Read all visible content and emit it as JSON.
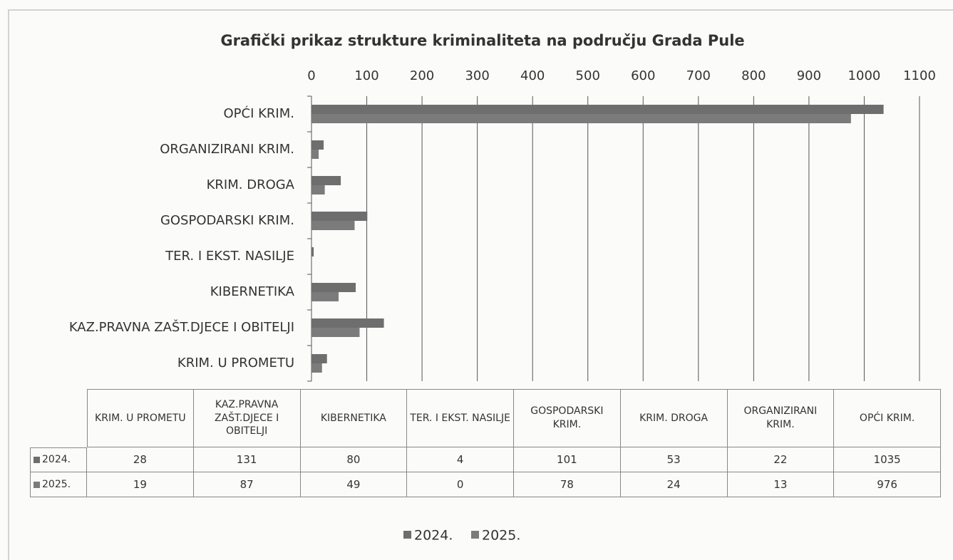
{
  "chart_data": {
    "type": "bar",
    "orientation": "horizontal",
    "title": "Grafički prikaz strukture kriminaliteta na području Grada Pule",
    "categories": [
      "KRIM. U PROMETU",
      "KAZ.PRAVNA ZAŠT.DJECE I OBITELJI",
      "KIBERNETIKA",
      "TER. I EKST. NASILJE",
      "GOSPODARSKI KRIM.",
      "KRIM. DROGA",
      "ORGANIZIRANI KRIM.",
      "OPĆI KRIM."
    ],
    "series": [
      {
        "name": "2024.",
        "color": "#6e6e6e",
        "values": [
          28,
          131,
          80,
          4,
          101,
          53,
          22,
          1035
        ]
      },
      {
        "name": "2025.",
        "color": "#7b7b7b",
        "values": [
          19,
          87,
          49,
          0,
          78,
          24,
          13,
          976
        ]
      }
    ],
    "xlim": [
      0,
      1100
    ],
    "xticks": [
      0,
      100,
      200,
      300,
      400,
      500,
      600,
      700,
      800,
      900,
      1000,
      1100
    ],
    "grid": true,
    "legend": "bottom"
  }
}
